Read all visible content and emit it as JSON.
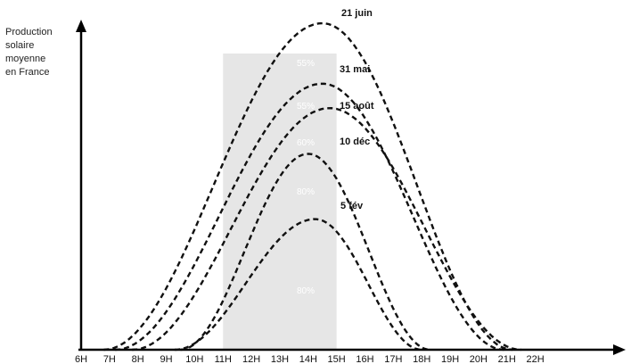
{
  "chart_data": {
    "type": "line",
    "ylabel_lines": [
      "Production",
      "solaire",
      "moyenne",
      "en France"
    ],
    "xlabel": "",
    "x_ticks": [
      "6H",
      "7H",
      "8H",
      "9H",
      "10H",
      "11H",
      "12H",
      "13H",
      "14H",
      "15H",
      "16H",
      "17H",
      "18H",
      "19H",
      "20H",
      "21H",
      "22H"
    ],
    "x_range": [
      6,
      22
    ],
    "highlight_band": {
      "from": 11,
      "to": 15,
      "color": "#e6e6e6"
    },
    "series": [
      {
        "name": "21 juin",
        "peak_hour": 14.5,
        "start": 6.8,
        "end": 21.2,
        "peak": 1.0
      },
      {
        "name": "31 mai",
        "peak_hour": 14.5,
        "start": 7.2,
        "end": 20.9,
        "peak": 0.815
      },
      {
        "name": "15 août",
        "peak_hour": 14.75,
        "start": 7.8,
        "end": 21.5,
        "peak": 0.74
      },
      {
        "name": "10 déc",
        "peak_hour": 14.0,
        "start": 9.5,
        "end": 18.3,
        "peak": 0.6
      },
      {
        "name": "5 fév",
        "peak_hour": 14.25,
        "start": 9.3,
        "end": 18.0,
        "peak": 0.4
      }
    ],
    "percent_labels": [
      "55%",
      "55%",
      "60%",
      "80%",
      "80%"
    ],
    "grid": false,
    "legend": "none"
  }
}
